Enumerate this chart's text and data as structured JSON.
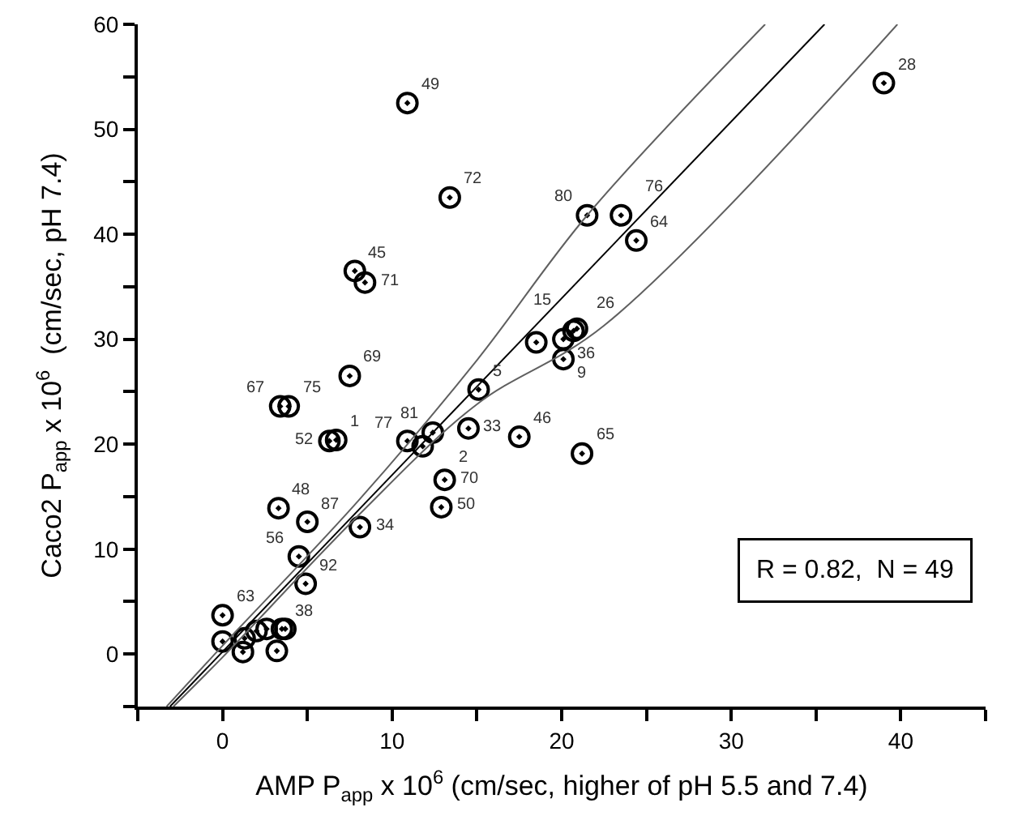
{
  "chart_data": {
    "type": "scatter",
    "xlabel": "AMP P$_{app}$ x 10$^{6}$ (cm/sec, higher of pH 5.5 and 7.4)",
    "ylabel": "Caco2 P$_{app}$ x 10$^{6}$  (cm/sec, pH 7.4)",
    "xlim": [
      -5,
      45
    ],
    "ylim": [
      -5,
      60
    ],
    "xticks": [
      {
        "value": -5,
        "label": null
      },
      0,
      {
        "value": 5,
        "label": null
      },
      10,
      {
        "value": 15,
        "label": null
      },
      20,
      {
        "value": 25,
        "label": null
      },
      30,
      {
        "value": 35,
        "label": null
      },
      40,
      {
        "value": 45,
        "label": null
      }
    ],
    "yticks": [
      {
        "value": -5,
        "label": null
      },
      0,
      {
        "value": 5,
        "label": null
      },
      10,
      {
        "value": 15,
        "label": null
      },
      20,
      {
        "value": 25,
        "label": null
      },
      30,
      {
        "value": 35,
        "label": null
      },
      40,
      {
        "value": 45,
        "label": null
      },
      50,
      {
        "value": 55,
        "label": null
      },
      60
    ],
    "annotations": [
      "R = 0.82,  N = 49",
      {
        "text": "49",
        "x": 10.9,
        "y": 52.5
      },
      {
        "text": "72",
        "x": 13.4,
        "y": 43.5
      },
      {
        "text": "45",
        "x": 7.8,
        "y": 36.5
      },
      {
        "text": "71",
        "x": 8.4,
        "y": 35.4
      },
      {
        "text": "28",
        "x": 39.0,
        "y": 54.4
      },
      {
        "text": "80",
        "x": 21.5,
        "y": 41.8
      },
      {
        "text": "76",
        "x": 23.5,
        "y": 41.8
      },
      {
        "text": "64",
        "x": 24.4,
        "y": 39.4
      },
      {
        "text": "36",
        "x": 20.1,
        "y": 30.0
      },
      {
        "text": "26",
        "x": 20.7,
        "y": 30.8
      },
      {
        "text": "15",
        "x": 20.9,
        "y": 31.0
      },
      {
        "text": "9",
        "x": 20.1,
        "y": 28.1
      },
      {
        "text": "69",
        "x": 7.5,
        "y": 26.5
      },
      {
        "text": "67",
        "x": 3.4,
        "y": 23.6
      },
      {
        "text": "75",
        "x": 3.9,
        "y": 23.6
      },
      {
        "text": "52",
        "x": 6.3,
        "y": 20.3
      },
      {
        "text": "1",
        "x": 6.7,
        "y": 20.4
      },
      {
        "text": "5",
        "x": 15.1,
        "y": 25.2
      },
      {
        "text": "77",
        "x": 10.9,
        "y": 20.3
      },
      {
        "text": "2",
        "x": 11.8,
        "y": 19.8
      },
      {
        "text": "81",
        "x": 12.4,
        "y": 21.1
      },
      {
        "text": "33",
        "x": 14.5,
        "y": 21.5
      },
      {
        "text": "46",
        "x": 17.5,
        "y": 20.7
      },
      {
        "text": "65",
        "x": 21.2,
        "y": 19.1
      },
      {
        "text": "70",
        "x": 13.1,
        "y": 16.6
      },
      {
        "text": "50",
        "x": 12.9,
        "y": 14.0
      },
      {
        "text": "34",
        "x": 8.1,
        "y": 12.1
      },
      {
        "text": "48",
        "x": 3.3,
        "y": 13.9
      },
      {
        "text": "87",
        "x": 5.0,
        "y": 12.6
      },
      {
        "text": "56",
        "x": 4.5,
        "y": 9.3
      },
      {
        "text": "92",
        "x": 4.9,
        "y": 6.7
      },
      {
        "text": "63",
        "x": 0,
        "y": 3.7
      },
      {
        "text": "38",
        "x": 3.5,
        "y": 2.4
      }
    ],
    "series": [
      {
        "marker": "circle",
        "color": "#000000",
        "x": [
          10.9,
          13.4,
          7.8,
          8.4,
          39.0,
          21.5,
          23.5,
          24.4,
          20.1,
          20.7,
          20.9,
          20.1,
          18.5,
          7.5,
          3.4,
          3.9,
          6.3,
          6.7,
          15.1,
          10.9,
          11.8,
          12.4,
          14.5,
          17.5,
          21.2,
          13.1,
          12.9,
          8.1,
          3.3,
          5.0,
          4.5,
          4.9,
          0,
          3.5,
          0,
          1.2,
          1.3,
          2.0,
          2.6,
          3.7,
          3.2
        ],
        "values": [
          52.5,
          43.5,
          36.5,
          35.4,
          54.4,
          41.8,
          41.8,
          39.4,
          30.0,
          30.8,
          31.0,
          28.1,
          29.7,
          26.5,
          23.6,
          23.6,
          20.3,
          20.4,
          25.2,
          20.3,
          19.8,
          21.1,
          21.5,
          20.7,
          19.1,
          16.6,
          14.0,
          12.1,
          13.9,
          12.6,
          9.3,
          6.7,
          3.7,
          2.4,
          1.2,
          0.2,
          1.5,
          2.2,
          2.4,
          2.4,
          0.3
        ]
      },
      {
        "type": "line",
        "marker": "none",
        "color": "#000000",
        "x": [
          -3.1,
          35.5
        ],
        "values": [
          -5,
          60
        ]
      },
      {
        "type": "line",
        "marker": "none",
        "color": "#606060",
        "x": [
          -3.3,
          0,
          8,
          15,
          21.5,
          32
        ],
        "values": [
          -5,
          0.8,
          14.6,
          28,
          41.8,
          60
        ]
      },
      {
        "type": "line",
        "marker": "none",
        "color": "#606060",
        "x": [
          -2.9,
          0,
          8,
          15,
          22.5,
          39.8
        ],
        "values": [
          -5,
          -0.3,
          13.2,
          23.8,
          31.3,
          60
        ]
      }
    ]
  }
}
